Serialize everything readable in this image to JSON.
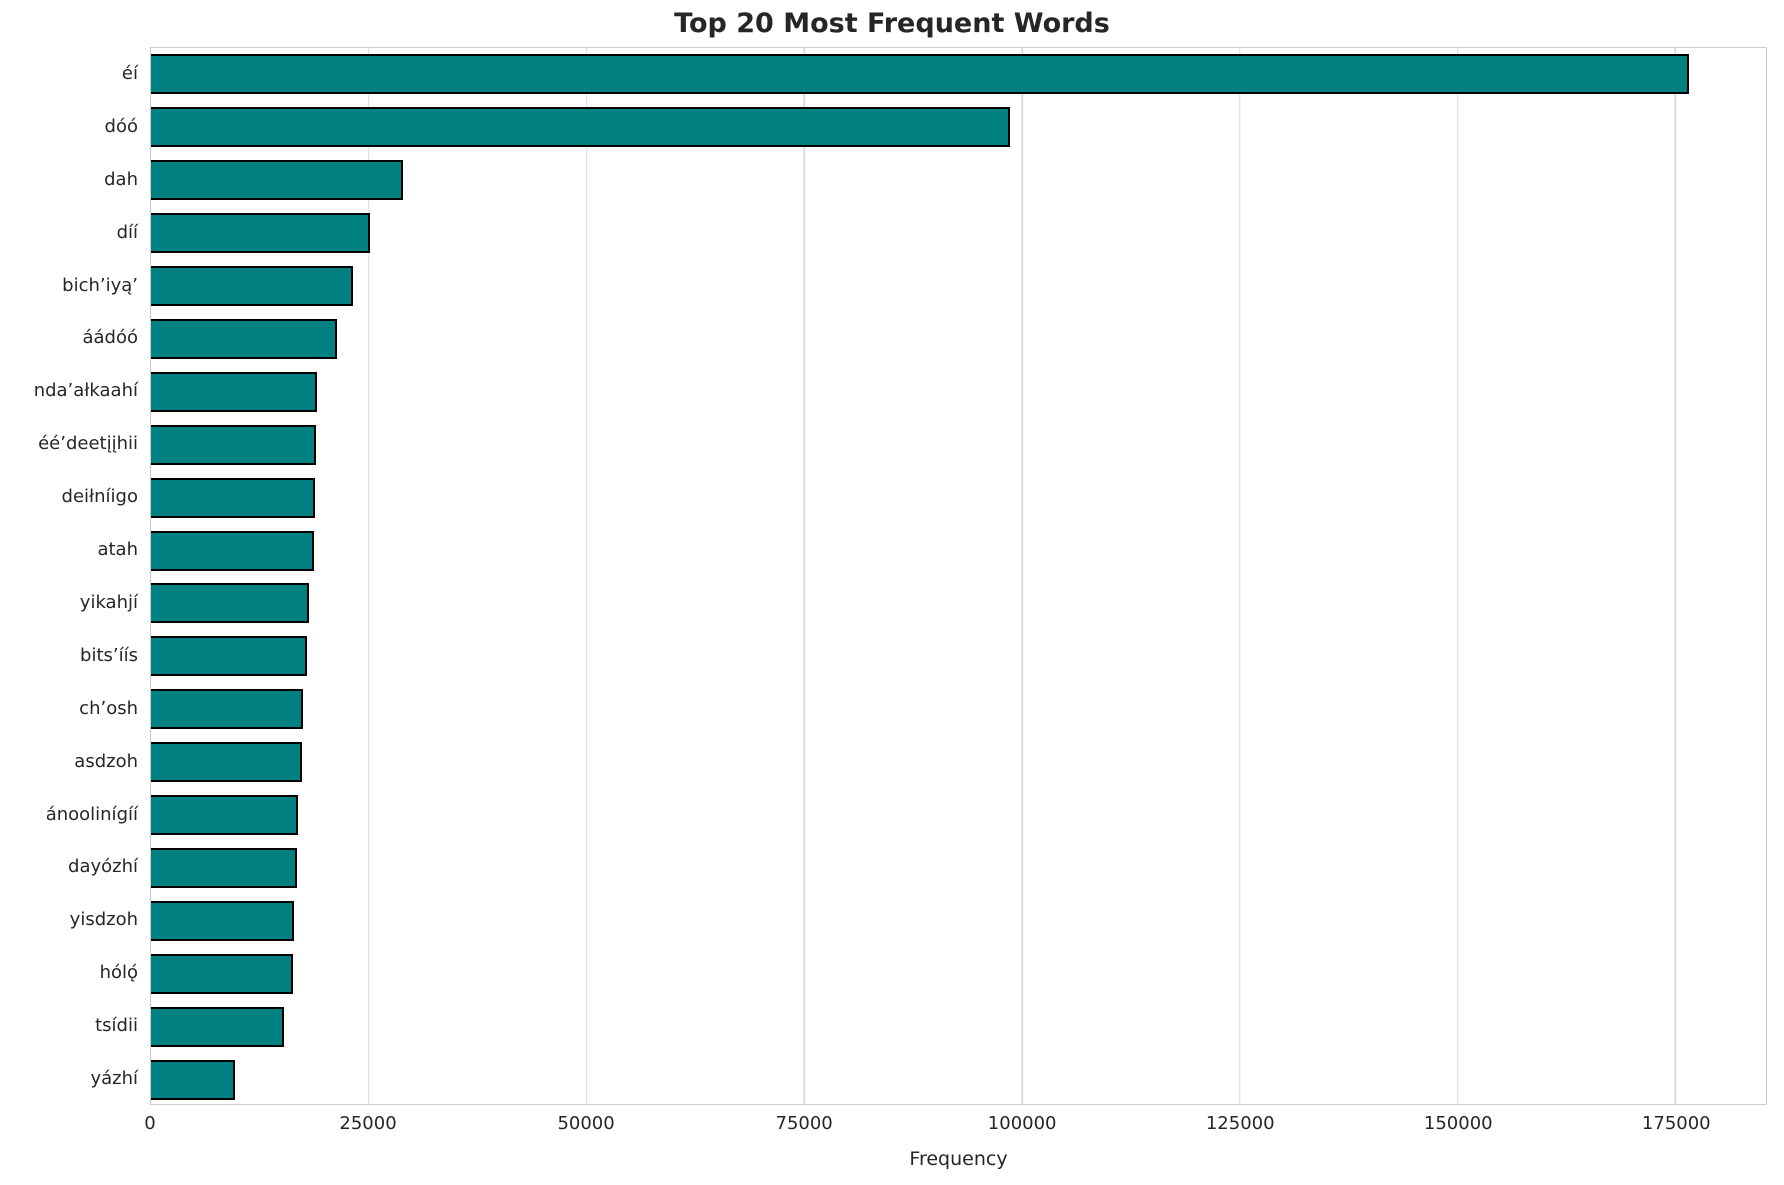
{
  "chart_data": {
    "type": "bar",
    "orientation": "horizontal",
    "title": "Top 20 Most Frequent Words",
    "xlabel": "Frequency",
    "ylabel": "",
    "categories": [
      "éí",
      "dóó",
      "dah",
      "díí",
      "bich’iyą’",
      "áádóó",
      "nda’ałkaahí",
      "éé’deetįįhii",
      "deiłníigo",
      "atah",
      "yikahjí",
      "bits’íís",
      "ch’osh",
      "asdzoh",
      "ánoolinígíí",
      "dayózhí",
      "yisdzoh",
      "hólǫ́",
      "tsídii",
      "yázhí"
    ],
    "values": [
      176600,
      98600,
      28900,
      25100,
      23200,
      21300,
      19000,
      18900,
      18850,
      18700,
      18100,
      17900,
      17500,
      17300,
      16900,
      16800,
      16400,
      16300,
      15300,
      9700
    ],
    "xticks": [
      0,
      25000,
      50000,
      75000,
      100000,
      125000,
      150000,
      175000
    ],
    "xlim": [
      0,
      185400
    ],
    "grid": true,
    "legend": null,
    "bar_color": "#008080",
    "bar_edge_color": "#000000",
    "grid_color": "#dcdcdc",
    "text_color": "#262626"
  }
}
